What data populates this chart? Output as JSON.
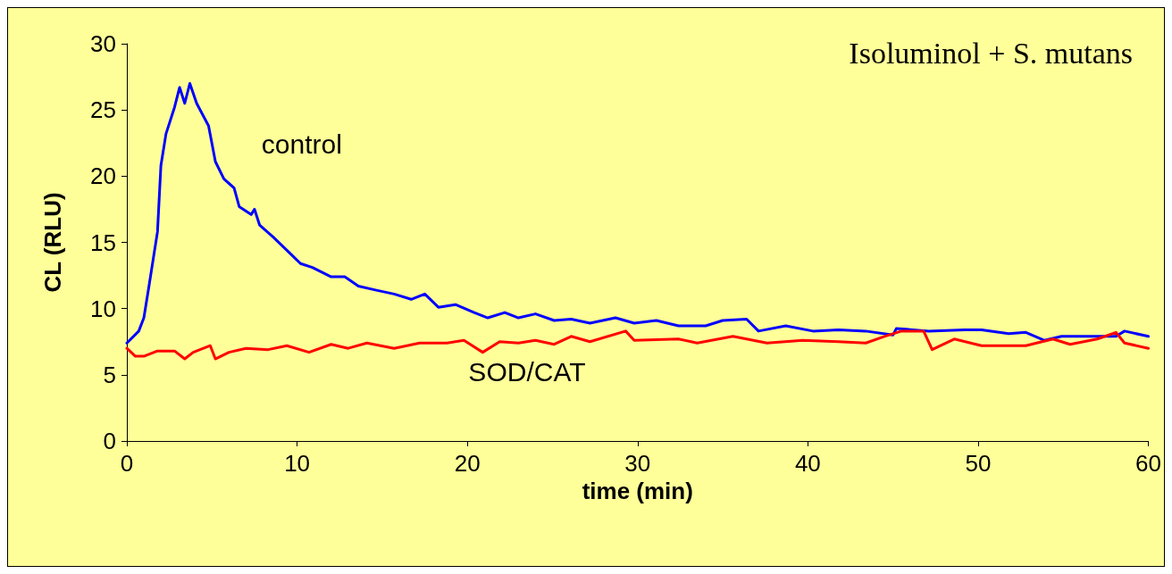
{
  "chart_data": {
    "type": "line",
    "title": "Isoluminol + S. mutans",
    "xlabel": "time (min)",
    "ylabel": "CL (RLU)",
    "xlim": [
      0,
      60
    ],
    "xticks": [
      0,
      10,
      20,
      30,
      40,
      50,
      60
    ],
    "ylim": [
      0,
      30
    ],
    "yticks": [
      0,
      5,
      10,
      15,
      20,
      25,
      30
    ],
    "grid": false,
    "legend": false,
    "marker": "none",
    "line_style": "solid",
    "series": [
      {
        "name": "control",
        "color": "#0000ff",
        "x": [
          0,
          0.7,
          1.0,
          1.3,
          1.8,
          2.0,
          2.3,
          2.8,
          3.1,
          3.4,
          3.7,
          4.1,
          4.8,
          5.2,
          5.7,
          6.3,
          6.6,
          7.3,
          7.5,
          7.8,
          8.6,
          9.4,
          10.2,
          10.9,
          12.0,
          12.8,
          13.6,
          14.6,
          15.7,
          16.7,
          17.5,
          18.3,
          19.3,
          20.4,
          21.2,
          22.2,
          23.0,
          24.0,
          25.1,
          26.1,
          27.2,
          28.7,
          29.8,
          31.1,
          32.4,
          34.0,
          35.0,
          36.4,
          37.1,
          38.7,
          40.3,
          41.8,
          43.4,
          45.0,
          45.2,
          47.1,
          49.2,
          50.2,
          51.8,
          52.8,
          53.9,
          54.9,
          56.5,
          58.1,
          58.6,
          60.0
        ],
        "values": [
          7.4,
          8.3,
          9.3,
          11.7,
          15.8,
          20.8,
          23.2,
          25.2,
          26.7,
          25.5,
          27.0,
          25.5,
          23.8,
          21.1,
          19.8,
          19.1,
          17.7,
          17.1,
          17.5,
          16.3,
          15.4,
          14.4,
          13.4,
          13.1,
          12.4,
          12.4,
          11.7,
          11.4,
          11.1,
          10.7,
          11.1,
          10.1,
          10.3,
          9.7,
          9.3,
          9.7,
          9.3,
          9.6,
          9.1,
          9.2,
          8.9,
          9.3,
          8.9,
          9.1,
          8.7,
          8.7,
          9.1,
          9.2,
          8.3,
          8.7,
          8.3,
          8.4,
          8.3,
          8.0,
          8.5,
          8.3,
          8.4,
          8.4,
          8.1,
          8.2,
          7.6,
          7.9,
          7.9,
          7.9,
          8.3,
          7.9
        ]
      },
      {
        "name": "SOD/CAT",
        "color": "#ff0000",
        "x": [
          0,
          0.5,
          1.0,
          1.8,
          2.8,
          3.4,
          3.9,
          4.9,
          5.2,
          6.0,
          7.0,
          8.3,
          9.4,
          10.7,
          12.0,
          13.0,
          14.1,
          15.7,
          17.2,
          18.8,
          19.8,
          20.9,
          21.9,
          23.0,
          24.0,
          25.1,
          26.1,
          27.2,
          29.3,
          29.8,
          32.4,
          33.5,
          35.6,
          37.6,
          39.7,
          41.8,
          43.4,
          44.5,
          45.5,
          46.8,
          47.3,
          48.6,
          50.2,
          52.8,
          54.4,
          55.4,
          57.0,
          58.1,
          58.6,
          60.0
        ],
        "values": [
          7.0,
          6.4,
          6.4,
          6.8,
          6.8,
          6.2,
          6.7,
          7.2,
          6.2,
          6.7,
          7.0,
          6.9,
          7.2,
          6.7,
          7.3,
          7.0,
          7.4,
          7.0,
          7.4,
          7.4,
          7.6,
          6.7,
          7.5,
          7.4,
          7.6,
          7.3,
          7.9,
          7.5,
          8.3,
          7.6,
          7.7,
          7.4,
          7.9,
          7.4,
          7.6,
          7.5,
          7.4,
          7.9,
          8.3,
          8.3,
          6.9,
          7.7,
          7.2,
          7.2,
          7.7,
          7.3,
          7.7,
          8.2,
          7.4,
          7.0
        ]
      }
    ]
  }
}
